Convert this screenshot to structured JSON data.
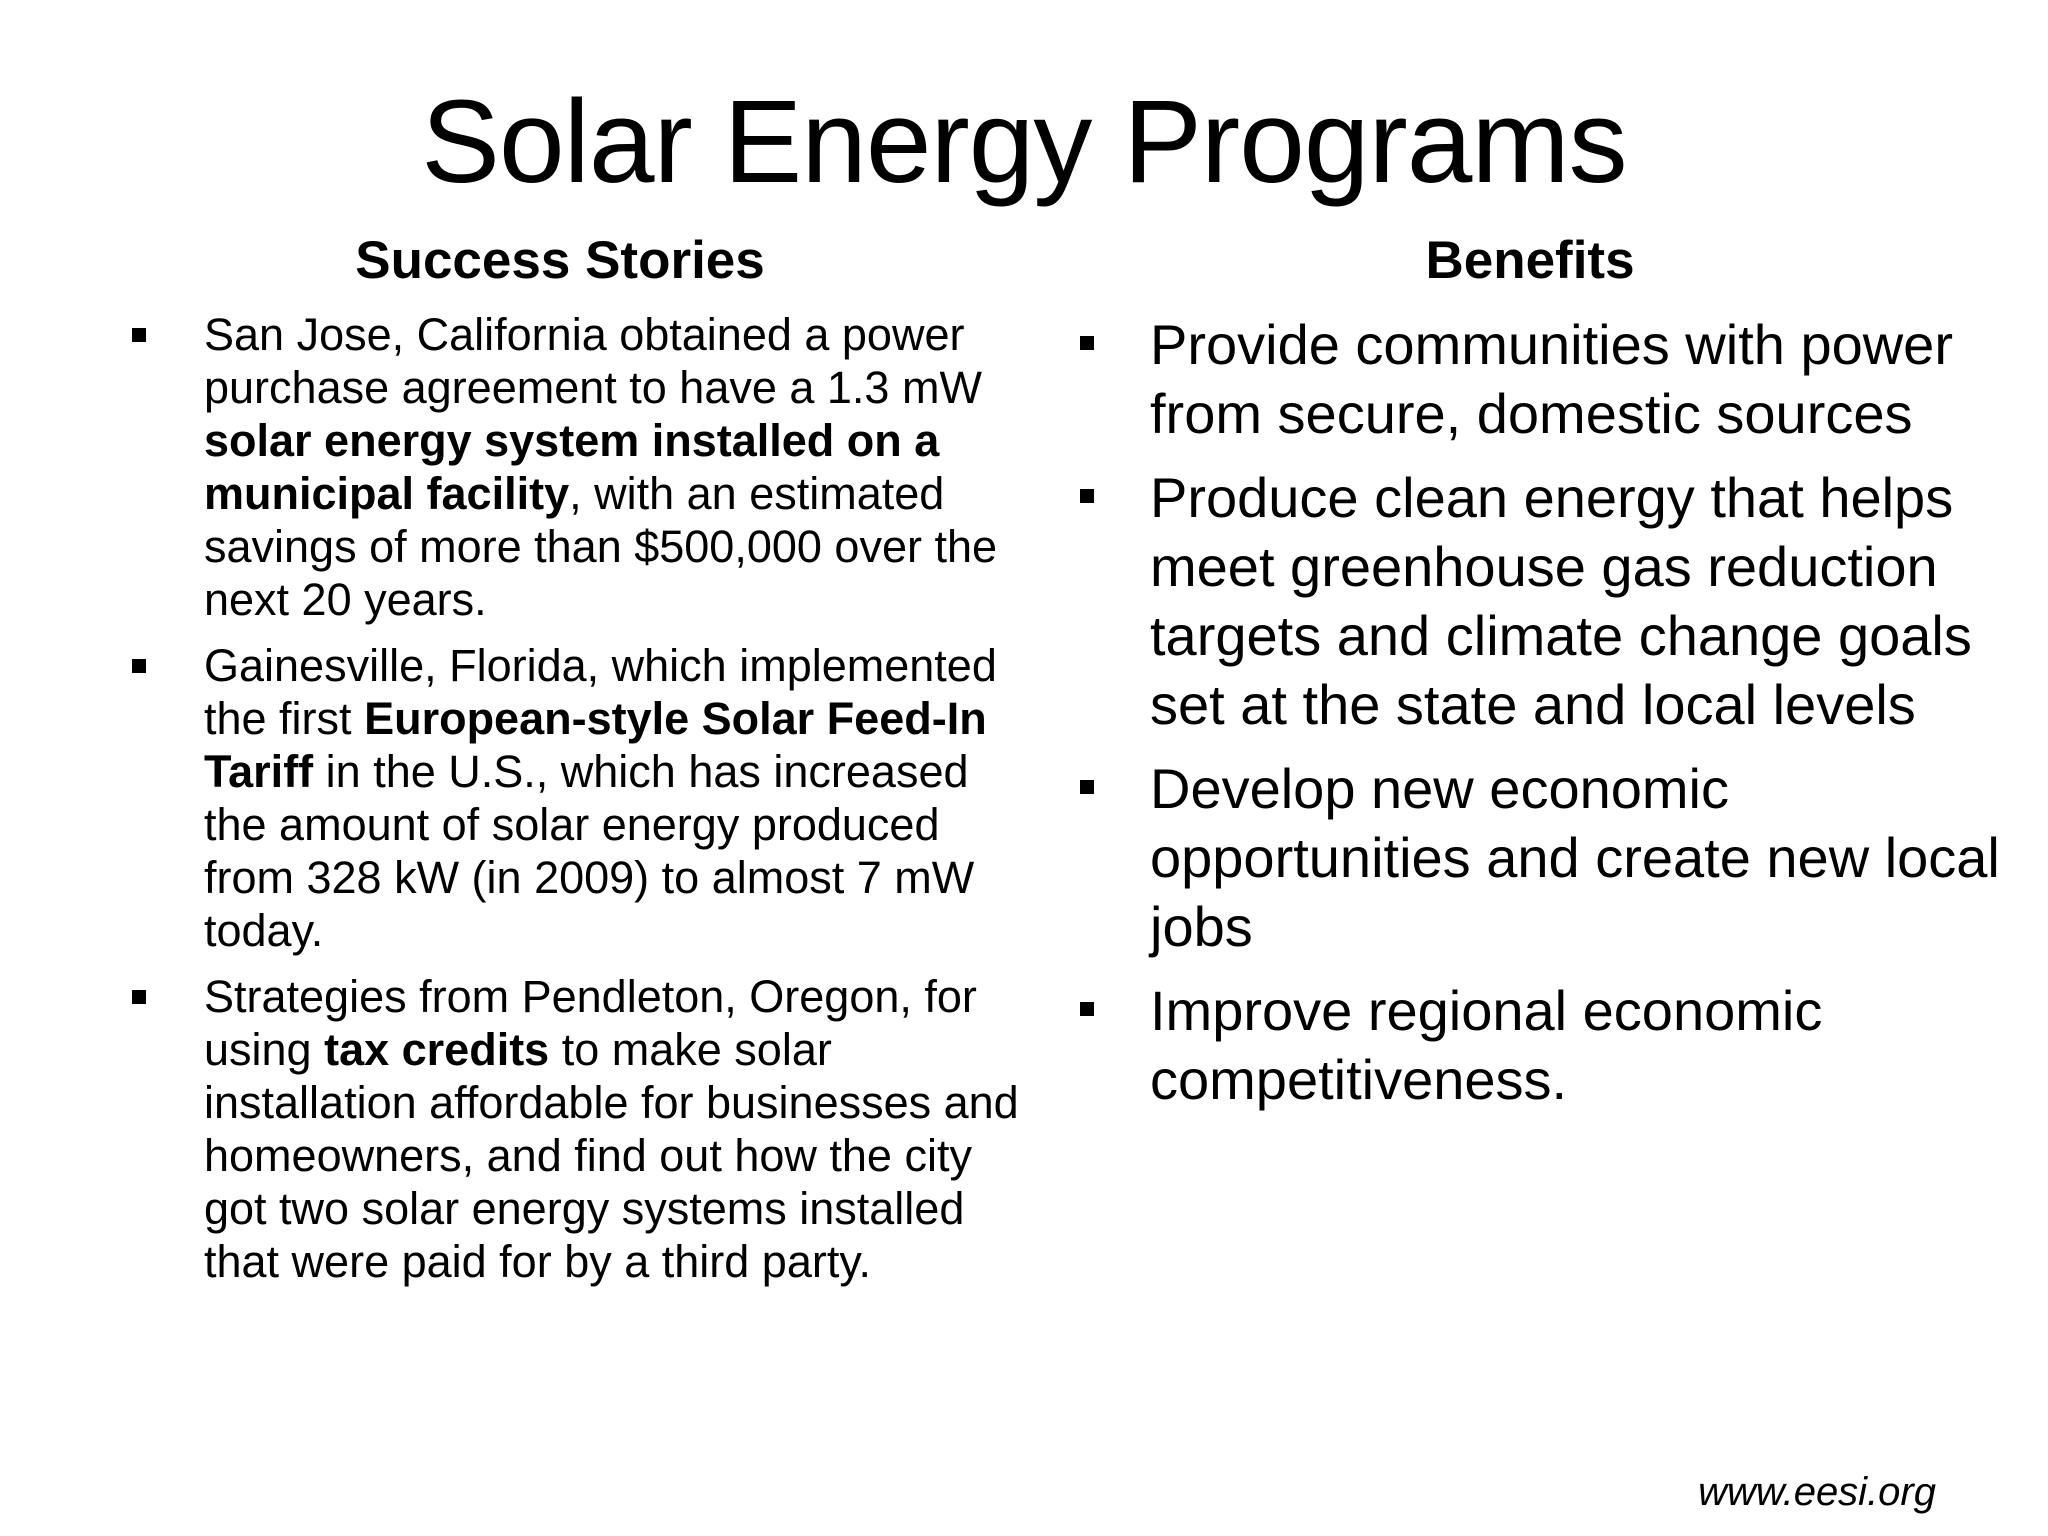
{
  "title": "Solar Energy Programs",
  "left_column": {
    "heading": "Success Stories",
    "items": [
      {
        "segments": [
          {
            "text": "San Jose, California obtained a power purchase agreement to have a 1.3 mW "
          },
          {
            "text": "solar energy system installed on a municipal facility",
            "bold": true
          },
          {
            "text": ", with an estimated savings of more than $500,000 over the next 20 years."
          }
        ]
      },
      {
        "segments": [
          {
            "text": "Gainesville, Florida, which implemented the first "
          },
          {
            "text": "European-style Solar Feed-In Tariff",
            "bold": true
          },
          {
            "text": " in the U.S., which has increased the amount of solar energy produced from 328 kW (in 2009) to almost 7 mW today."
          }
        ]
      },
      {
        "segments": [
          {
            "text": "Strategies from Pendleton, Oregon, for using "
          },
          {
            "text": "tax credits",
            "bold": true
          },
          {
            "text": " to make solar installation affordable for businesses and homeowners, and find out how the city got two solar energy systems installed that were paid for by a third party."
          }
        ]
      }
    ]
  },
  "right_column": {
    "heading": "Benefits",
    "items": [
      "Provide communities with power from secure, domestic sources",
      "Produce clean energy that helps meet greenhouse gas reduction targets and climate change goals set at the state and local levels",
      "Develop new economic opportunities and create new local jobs",
      "Improve regional economic competitiveness."
    ]
  },
  "footer": {
    "url": "www.eesi.org"
  }
}
